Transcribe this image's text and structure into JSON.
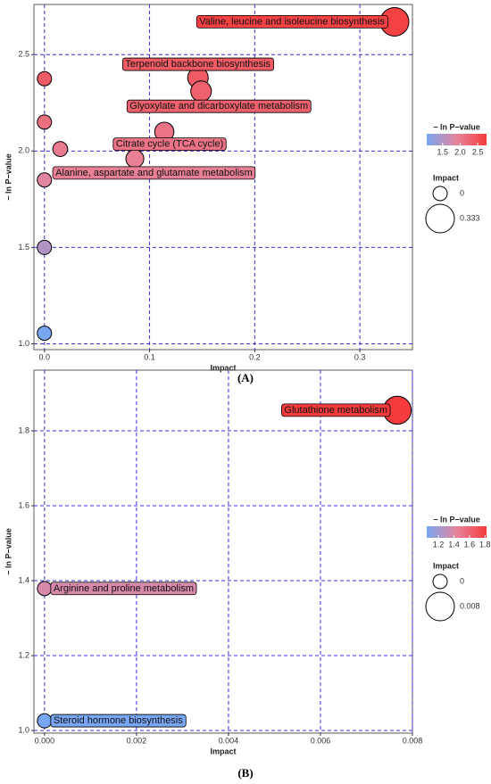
{
  "chart_data": [
    {
      "type": "bubble",
      "caption": "(A)",
      "x_label": "Impact",
      "y_label": "− ln P−value",
      "x": [
        0.333,
        0.146,
        0.149,
        0.114,
        0.086,
        0.015,
        0,
        0,
        0,
        0,
        0
      ],
      "y": [
        2.67,
        2.38,
        2.31,
        2.1,
        1.96,
        2.01,
        2.375,
        2.15,
        1.85,
        1.5,
        1.055
      ],
      "labels": [
        "Valine, leucine and isoleucine biosynthesis",
        "Terpenoid backbone biosynthesis",
        "Glyoxylate and dicarboxylate metabolism",
        "Citrate cycle (TCA cycle)",
        "Alanine, aspartate and glutamate metabolism",
        null,
        null,
        null,
        null,
        null,
        null
      ],
      "xlim": [
        -0.01,
        0.35
      ],
      "ylim": [
        0.97,
        2.76
      ],
      "xticks": [
        {
          "value": 0,
          "label": "0.0"
        },
        0.1,
        0.2,
        0.3
      ],
      "yticks": [
        {
          "value": 1,
          "label": "1.0"
        },
        1.5,
        {
          "value": 2,
          "label": "2.0"
        },
        2.5
      ],
      "grid": true,
      "grid_color": "#3a2fd8",
      "color_title": "− ln P−value",
      "colormap": [
        "#78a6f2",
        "#e6849c",
        "#f53b3b"
      ],
      "clim": [
        1.05,
        2.75
      ],
      "color_ticks": [
        1.5,
        {
          "value": 2,
          "label": "2.0"
        },
        2.5
      ],
      "size_title": "Impact",
      "size_ticks": [
        0,
        0.333
      ]
    },
    {
      "type": "bubble",
      "caption": "(B)",
      "x_label": "Impact",
      "y_label": "− ln P−value",
      "x": [
        0.00767,
        0,
        0
      ],
      "y": [
        1.855,
        1.379,
        1.026
      ],
      "labels": [
        "Glutathione metabolism",
        "Arginine and proline metabolism",
        "Steroid hormone biosynthesis"
      ],
      "xlim": [
        -0.00023,
        0.008
      ],
      "ylim": [
        0.993,
        1.962
      ],
      "xticks": [
        {
          "value": 0,
          "label": "0.000"
        },
        0.002,
        0.004,
        0.006,
        0.008
      ],
      "yticks": [
        {
          "value": 1,
          "label": "1.0"
        },
        1.2,
        1.4,
        1.6,
        1.8
      ],
      "grid": true,
      "grid_color": "#3a2fd8",
      "color_title": "− ln P−value",
      "colormap": [
        "#78a6f2",
        "#e6849c",
        "#f53b3b"
      ],
      "clim": [
        1.05,
        1.82
      ],
      "color_ticks": [
        1.2,
        1.4,
        1.6,
        1.8
      ],
      "size_title": "Impact",
      "size_ticks": [
        0,
        0.008
      ]
    }
  ]
}
